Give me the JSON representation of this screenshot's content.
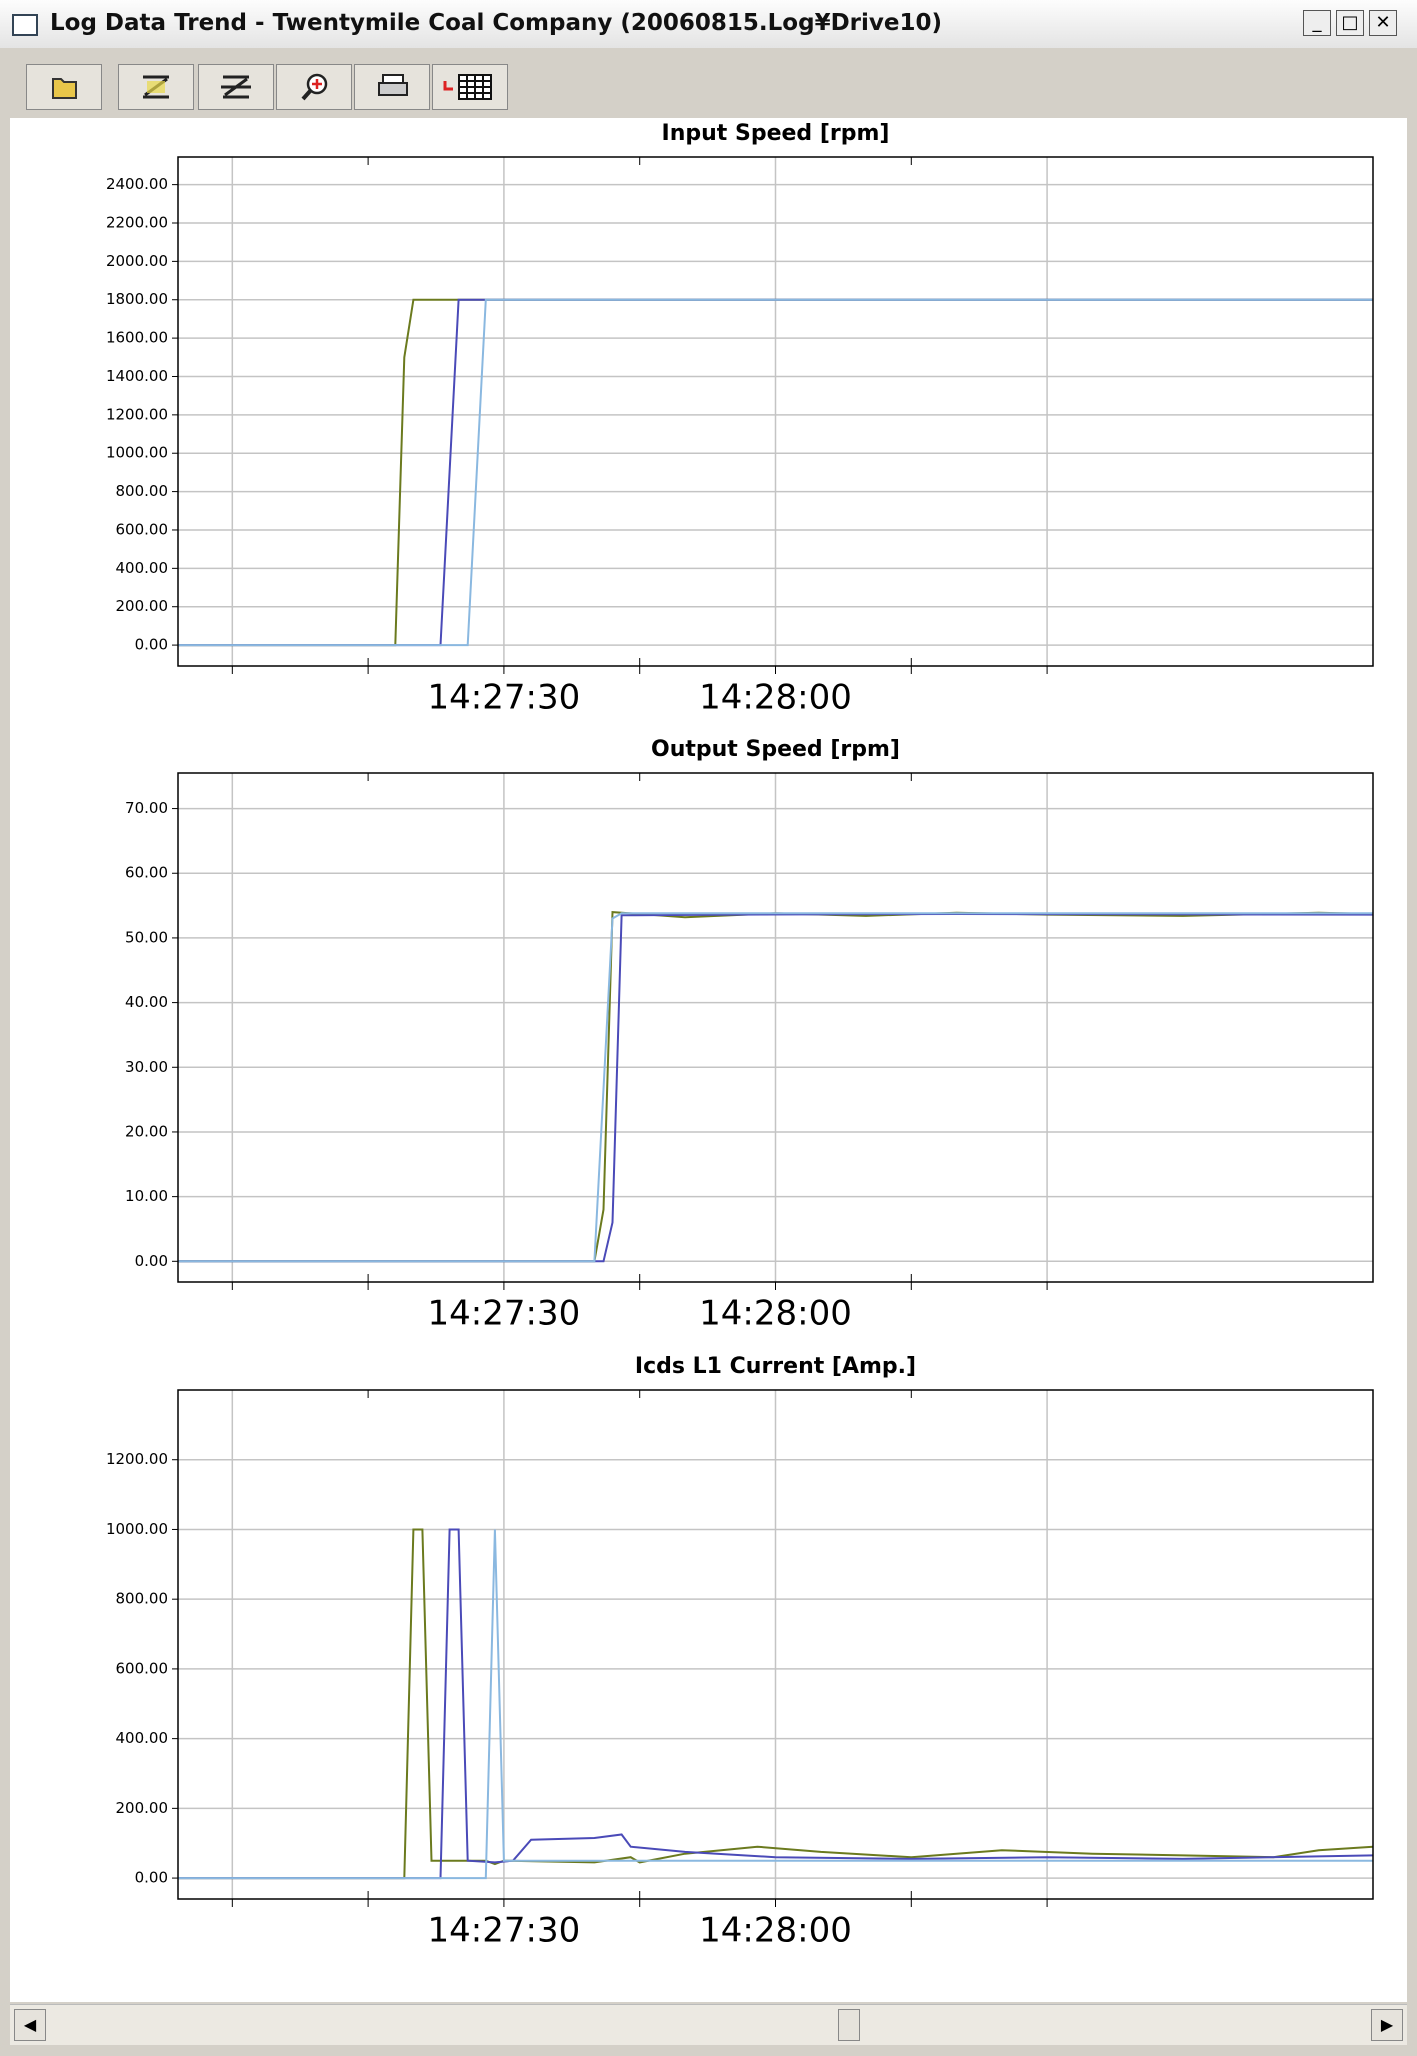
{
  "window": {
    "title": "Log Data Trend - Twentymile Coal Company (20060815.Log¥Drive10)"
  },
  "chart_data": [
    {
      "type": "line",
      "title": "Input Speed [rpm]",
      "xlim": [
        "14:26:54",
        "14:29:06"
      ],
      "xticks": [
        "14:27:30",
        "14:28:00"
      ],
      "xgrid": [
        "14:27:00",
        "14:27:30",
        "14:28:00",
        "14:28:30"
      ],
      "xminor": [
        "14:27:15",
        "14:27:45",
        "14:28:15"
      ],
      "ylim": [
        -109,
        2544
      ],
      "yticks": [
        {
          "value": 0,
          "label": "0.00"
        },
        {
          "value": 200,
          "label": "200.00"
        },
        {
          "value": 400,
          "label": "400.00"
        },
        {
          "value": 600,
          "label": "600.00"
        },
        {
          "value": 800,
          "label": "800.00"
        },
        {
          "value": 1000,
          "label": "1000.00"
        },
        {
          "value": 1200,
          "label": "1200.00"
        },
        {
          "value": 1400,
          "label": "1400.00"
        },
        {
          "value": 1600,
          "label": "1600.00"
        },
        {
          "value": 1800,
          "label": "1800.00"
        },
        {
          "value": 2000,
          "label": "2000.00"
        },
        {
          "value": 2200,
          "label": "2200.00"
        },
        {
          "value": 2400,
          "label": "2400.00"
        }
      ],
      "grid": true,
      "series": [
        {
          "color": "#6b7a1e",
          "x": [
            "14:26:54",
            "14:27:18",
            "14:27:19",
            "14:27:20",
            "14:29:06"
          ],
          "values": [
            0,
            0,
            1500,
            1800,
            1800
          ]
        },
        {
          "color": "#4a4ab8",
          "x": [
            "14:26:54",
            "14:27:23",
            "14:27:25",
            "14:29:06"
          ],
          "values": [
            0,
            0,
            1800,
            1800
          ]
        },
        {
          "color": "#8ab8e0",
          "x": [
            "14:26:54",
            "14:27:26",
            "14:27:28",
            "14:29:06"
          ],
          "values": [
            0,
            0,
            1800,
            1800
          ]
        }
      ]
    },
    {
      "type": "line",
      "title": "Output Speed [rpm]",
      "xlim": [
        "14:26:54",
        "14:29:06"
      ],
      "xticks": [
        "14:27:30",
        "14:28:00"
      ],
      "xgrid": [
        "14:27:00",
        "14:27:30",
        "14:28:00",
        "14:28:30"
      ],
      "xminor": [
        "14:27:15",
        "14:27:45",
        "14:28:15"
      ],
      "ylim": [
        -3.2,
        75.5
      ],
      "yticks": [
        {
          "value": 0,
          "label": "0.00"
        },
        {
          "value": 10,
          "label": "10.00"
        },
        {
          "value": 20,
          "label": "20.00"
        },
        {
          "value": 30,
          "label": "30.00"
        },
        {
          "value": 40,
          "label": "40.00"
        },
        {
          "value": 50,
          "label": "50.00"
        },
        {
          "value": 60,
          "label": "60.00"
        },
        {
          "value": 70,
          "label": "70.00"
        }
      ],
      "grid": true,
      "series": [
        {
          "color": "#6b7a1e",
          "x": [
            "14:26:54",
            "14:27:40",
            "14:27:41",
            "14:27:42",
            "14:27:50",
            "14:28:00",
            "14:28:10",
            "14:28:20",
            "14:28:30",
            "14:28:45",
            "14:29:00",
            "14:29:06"
          ],
          "values": [
            0,
            0,
            8,
            54,
            53.2,
            53.8,
            53.4,
            53.9,
            53.6,
            53.4,
            53.9,
            53.7
          ]
        },
        {
          "color": "#4a4ab8",
          "x": [
            "14:26:54",
            "14:27:41",
            "14:27:42",
            "14:27:43",
            "14:27:55",
            "14:28:20",
            "14:29:06"
          ],
          "values": [
            0,
            0,
            6,
            53.5,
            53.6,
            53.7,
            53.6
          ]
        },
        {
          "color": "#8ab8e0",
          "x": [
            "14:26:54",
            "14:27:40",
            "14:27:42",
            "14:27:43",
            "14:29:06"
          ],
          "values": [
            0,
            0,
            53,
            53.8,
            53.8
          ]
        }
      ]
    },
    {
      "type": "line",
      "title": "Icds L1 Current [Amp.]",
      "xlim": [
        "14:26:54",
        "14:29:06"
      ],
      "xticks": [
        "14:27:30",
        "14:28:00"
      ],
      "xgrid": [
        "14:27:00",
        "14:27:30",
        "14:28:00",
        "14:28:30"
      ],
      "xminor": [
        "14:27:15",
        "14:27:45",
        "14:28:15"
      ],
      "ylim": [
        -60,
        1400
      ],
      "yticks": [
        {
          "value": 0,
          "label": "0.00"
        },
        {
          "value": 200,
          "label": "200.00"
        },
        {
          "value": 400,
          "label": "400.00"
        },
        {
          "value": 600,
          "label": "600.00"
        },
        {
          "value": 800,
          "label": "800.00"
        },
        {
          "value": 1000,
          "label": "1000.00"
        },
        {
          "value": 1200,
          "label": "1200.00"
        }
      ],
      "grid": true,
      "series": [
        {
          "color": "#6b7a1e",
          "x": [
            "14:26:54",
            "14:27:19",
            "14:27:20",
            "14:27:21",
            "14:27:22",
            "14:27:28",
            "14:27:29",
            "14:27:30",
            "14:27:40",
            "14:27:44",
            "14:27:45",
            "14:27:50",
            "14:27:58",
            "14:28:05",
            "14:28:15",
            "14:28:25",
            "14:28:35",
            "14:28:45",
            "14:28:55",
            "14:29:00",
            "14:29:06"
          ],
          "values": [
            0,
            0,
            1000,
            1000,
            50,
            50,
            40,
            50,
            45,
            60,
            45,
            70,
            90,
            75,
            60,
            80,
            70,
            65,
            60,
            80,
            90
          ]
        },
        {
          "color": "#4a4ab8",
          "x": [
            "14:26:54",
            "14:27:23",
            "14:27:24",
            "14:27:25",
            "14:27:26",
            "14:27:29",
            "14:27:31",
            "14:27:33",
            "14:27:40",
            "14:27:43",
            "14:27:44",
            "14:27:50",
            "14:28:00",
            "14:28:15",
            "14:28:30",
            "14:28:45",
            "14:29:06"
          ],
          "values": [
            0,
            0,
            1000,
            1000,
            50,
            45,
            50,
            110,
            115,
            125,
            90,
            75,
            60,
            55,
            60,
            55,
            65
          ]
        },
        {
          "color": "#8ab8e0",
          "x": [
            "14:26:54",
            "14:27:28",
            "14:27:29",
            "14:27:30",
            "14:29:06"
          ],
          "values": [
            0,
            0,
            1000,
            50,
            50
          ]
        }
      ]
    }
  ]
}
